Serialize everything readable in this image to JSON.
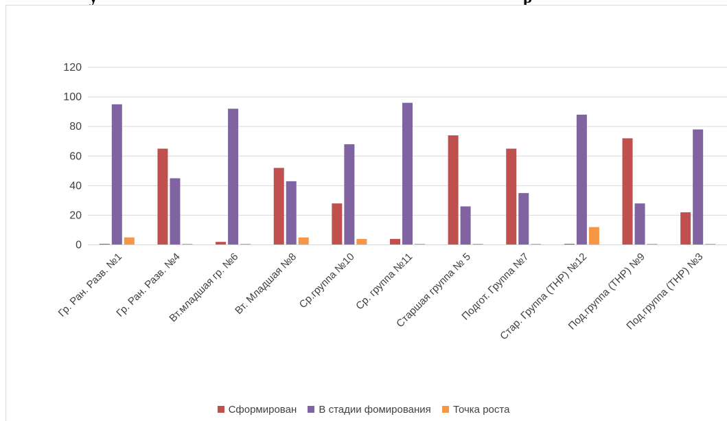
{
  "chart_data": {
    "type": "bar",
    "title": "",
    "categories": [
      "Гр. Ран. Разв. №1",
      "Гр. Ран. Разв. №4",
      "Вт.младшая гр. №6",
      "Вт. Младшая №8",
      "Ср.группа №10",
      "Ср. группа №11",
      "Старшая группа № 5",
      "Подгот. Группа №7",
      "Стар. Группа  (ТНР) №12",
      "Под.группа (ТНР) №9",
      "Под.группа (ТНР) №3"
    ],
    "series": [
      {
        "name": "Сформирован",
        "color": "#c0504d",
        "values": [
          0,
          65,
          2,
          52,
          28,
          4,
          74,
          65,
          0,
          72,
          22
        ]
      },
      {
        "name": "В стадии фомирования",
        "color": "#8064a2",
        "values": [
          95,
          45,
          92,
          43,
          68,
          96,
          26,
          35,
          88,
          28,
          78
        ]
      },
      {
        "name": "Точка роста",
        "color": "#f79646",
        "values": [
          5,
          0,
          0,
          5,
          4,
          0,
          0,
          0,
          12,
          0,
          0
        ]
      }
    ],
    "ylim": [
      0,
      120
    ],
    "yticks": [
      0,
      20,
      40,
      60,
      80,
      100,
      120
    ],
    "grid": true,
    "legend_position": "bottom"
  }
}
